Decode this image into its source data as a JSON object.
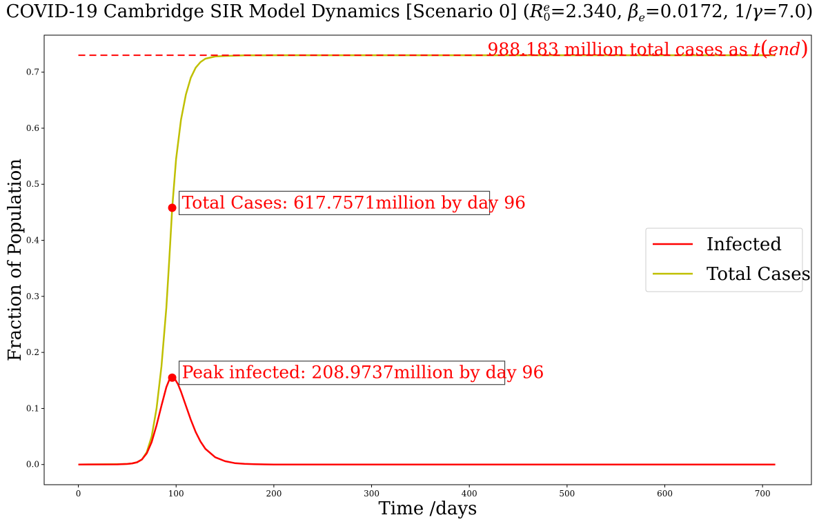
{
  "chart_data": {
    "type": "line",
    "title_parts": {
      "prefix": "COVID-19 Cambridge SIR Model Dynamics [Scenario 0] (",
      "r_symbol": "R",
      "r_sup": "e",
      "r_sub": "0",
      "r_value": "=2.340, ",
      "beta_symbol": "β",
      "beta_sub": "e",
      "beta_value": "=0.0172, 1/",
      "gamma_symbol": "γ",
      "gamma_value": "=7.0)"
    },
    "xlabel": "Time /days",
    "ylabel": "Fraction of Population",
    "xlim": [
      -35,
      750
    ],
    "ylim": [
      -0.036,
      0.766
    ],
    "xticks": [
      0,
      100,
      200,
      300,
      400,
      500,
      600,
      700
    ],
    "yticks": [
      0.0,
      0.1,
      0.2,
      0.3,
      0.4,
      0.5,
      0.6,
      0.7
    ],
    "ytick_labels": [
      "0.0",
      "0.1",
      "0.2",
      "0.3",
      "0.4",
      "0.5",
      "0.6",
      "0.7"
    ],
    "grid": false,
    "legend_position": "center-right",
    "series": [
      {
        "name": "Infected",
        "color": "#ff0000",
        "x": [
          0,
          40,
          50,
          55,
          60,
          65,
          70,
          75,
          80,
          85,
          90,
          93,
          96,
          99,
          102,
          105,
          110,
          115,
          120,
          125,
          130,
          140,
          150,
          160,
          170,
          180,
          200,
          250,
          300,
          400,
          500,
          600,
          713
        ],
        "y": [
          0.0,
          0.0003,
          0.001,
          0.002,
          0.004,
          0.009,
          0.02,
          0.04,
          0.07,
          0.105,
          0.138,
          0.151,
          0.155,
          0.152,
          0.143,
          0.13,
          0.105,
          0.08,
          0.058,
          0.041,
          0.028,
          0.013,
          0.006,
          0.0025,
          0.0011,
          0.0005,
          0.0001,
          0.0,
          0.0,
          0.0,
          0.0,
          0.0,
          0.0
        ]
      },
      {
        "name": "Total Cases",
        "color": "#bfbf00",
        "x": [
          0,
          40,
          50,
          55,
          60,
          65,
          70,
          75,
          80,
          85,
          90,
          93,
          96,
          100,
          105,
          110,
          115,
          120,
          125,
          130,
          140,
          150,
          160,
          170,
          180,
          200,
          250,
          300,
          400,
          500,
          600,
          713
        ],
        "y": [
          0.0,
          0.0005,
          0.001,
          0.002,
          0.004,
          0.009,
          0.022,
          0.05,
          0.1,
          0.175,
          0.28,
          0.365,
          0.458,
          0.545,
          0.615,
          0.66,
          0.69,
          0.708,
          0.718,
          0.724,
          0.728,
          0.729,
          0.7295,
          0.73,
          0.73,
          0.7302,
          0.7302,
          0.7302,
          0.7302,
          0.7302,
          0.7302,
          0.7302
        ]
      }
    ],
    "reference_line": {
      "y": 0.7302,
      "x_range": [
        0,
        713
      ],
      "color": "#ff0000",
      "style": "dashed",
      "label_prefix": "988.183 million total cases as ",
      "label_math_t": "t",
      "label_math_end": "end"
    },
    "annotations": [
      {
        "label": "Total Cases: 617.7571million by day 96",
        "x": 96,
        "y": 0.458,
        "color": "#ff0000"
      },
      {
        "label": "Peak infected: 208.9737million by day 96",
        "x": 96,
        "y": 0.155,
        "color": "#ff0000"
      }
    ]
  }
}
